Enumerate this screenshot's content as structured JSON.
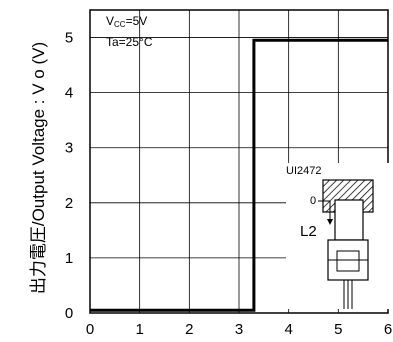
{
  "chart_data": {
    "type": "line",
    "title": "",
    "ylabel": "出力電圧/Output Voltage : V o (V)",
    "xlabel": "",
    "xlim": [
      0,
      6
    ],
    "ylim": [
      0,
      5.5
    ],
    "x_ticks": [
      "0",
      "1",
      "2",
      "3",
      "4",
      "5",
      "6"
    ],
    "y_ticks": [
      "0",
      "1",
      "2",
      "3",
      "4",
      "5"
    ],
    "grid": true,
    "conditions": {
      "vcc_prefix": "V",
      "vcc_sub": "CC",
      "vcc_value": "=5V",
      "ta": "Ta=25°C"
    },
    "series": [
      {
        "x": [
          0,
          3.3,
          3.3,
          6
        ],
        "y": [
          0.05,
          0.05,
          4.95,
          4.95
        ]
      }
    ],
    "inset": {
      "part_label": "UI2472",
      "zero_mark": "0",
      "distance_label": "L2"
    }
  }
}
